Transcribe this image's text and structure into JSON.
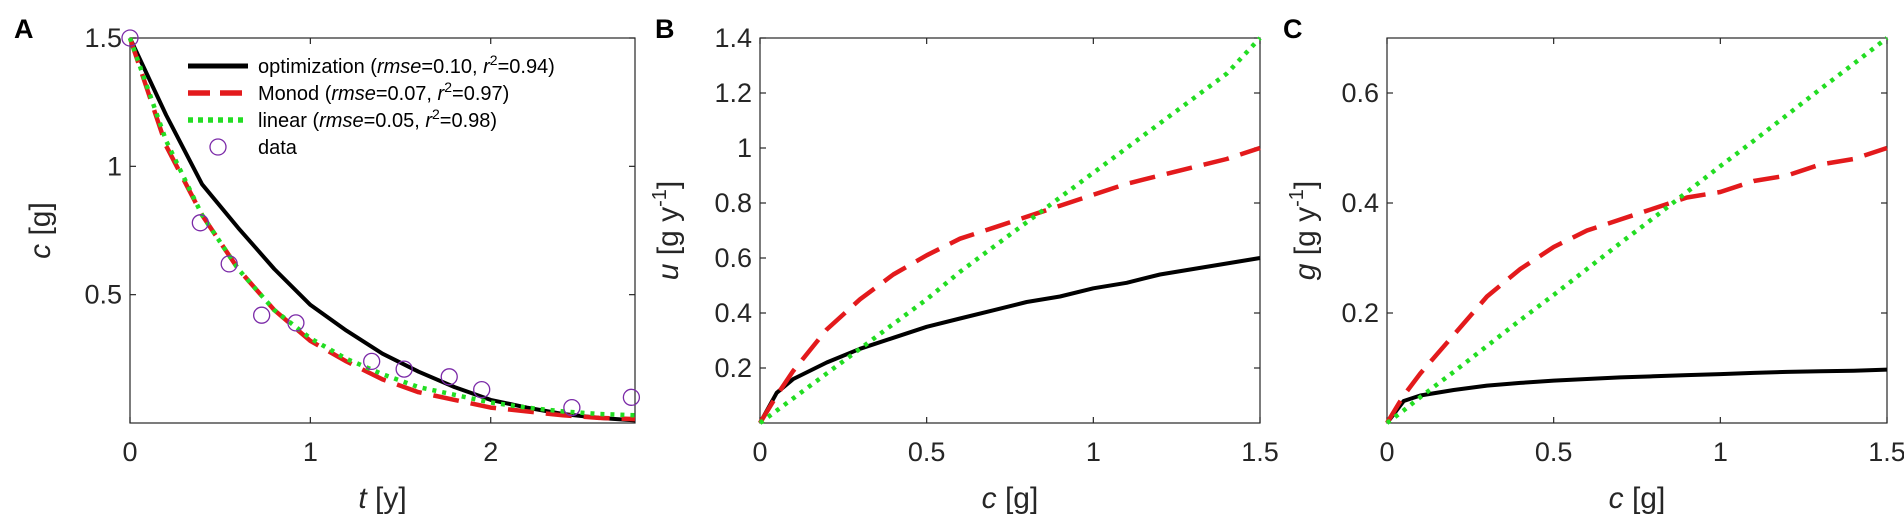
{
  "chart_data": [
    {
      "panel": "A",
      "type": "line",
      "xlabel_var": "t",
      "xlabel_unit": " [y]",
      "ylabel_var": "c",
      "ylabel_unit": " [g]",
      "xlim": [
        0,
        2.8
      ],
      "ylim": [
        0,
        1.5
      ],
      "xticks": [
        0,
        1,
        2
      ],
      "xtick_labels": [
        "0",
        "1",
        "2"
      ],
      "yticks": [
        0.5,
        1,
        1.5
      ],
      "ytick_labels": [
        "0.5",
        "1",
        "1.5"
      ],
      "grid": false,
      "legend_position": "top-right",
      "x": [
        0,
        0.2,
        0.4,
        0.6,
        0.8,
        1.0,
        1.2,
        1.4,
        1.6,
        1.8,
        2.0,
        2.2,
        2.4,
        2.6,
        2.8
      ],
      "series": [
        {
          "name": "optimization",
          "legend_name": "optimization (",
          "legend_rmse": "=0.10,  ",
          "legend_r2": "=0.94)",
          "color": "#000000",
          "style": "solid",
          "values": [
            1.5,
            1.2,
            0.93,
            0.76,
            0.6,
            0.46,
            0.36,
            0.27,
            0.2,
            0.14,
            0.09,
            0.06,
            0.035,
            0.02,
            0.01
          ]
        },
        {
          "name": "Monod",
          "legend_name": "Monod (",
          "legend_rmse": "=0.07,  ",
          "legend_r2": "=0.97)",
          "color": "#e31a1c",
          "style": "dashed",
          "values": [
            1.5,
            1.08,
            0.81,
            0.6,
            0.44,
            0.32,
            0.24,
            0.17,
            0.12,
            0.09,
            0.06,
            0.045,
            0.03,
            0.02,
            0.015
          ]
        },
        {
          "name": "linear",
          "legend_name": "linear (",
          "legend_rmse": "=0.05,  ",
          "legend_r2": "=0.98)",
          "color": "#22dd22",
          "style": "dotted",
          "values": [
            1.5,
            1.1,
            0.81,
            0.6,
            0.44,
            0.33,
            0.25,
            0.19,
            0.14,
            0.11,
            0.08,
            0.06,
            0.045,
            0.035,
            0.03
          ]
        }
      ],
      "scatter": {
        "name": "data",
        "color": "#7b2aa8",
        "x": [
          0,
          0.39,
          0.55,
          0.73,
          0.92,
          1.34,
          1.52,
          1.77,
          1.95,
          2.45,
          2.78
        ],
        "y": [
          1.5,
          0.78,
          0.62,
          0.42,
          0.39,
          0.24,
          0.21,
          0.18,
          0.13,
          0.06,
          0.1
        ]
      },
      "legend_rmse_label": "rmse",
      "legend_r2_label": "r"
    },
    {
      "panel": "B",
      "type": "line",
      "xlabel_var": "c",
      "xlabel_unit": " [g]",
      "ylabel_var": "u",
      "ylabel_unit": " [g y",
      "ylabel_exp": "-1",
      "ylabel_close": "]",
      "xlim": [
        0,
        1.5
      ],
      "ylim": [
        0,
        1.4
      ],
      "xticks": [
        0,
        0.5,
        1,
        1.5
      ],
      "xtick_labels": [
        "0",
        "0.5",
        "1",
        "1.5"
      ],
      "yticks": [
        0.2,
        0.4,
        0.6,
        0.8,
        1.0,
        1.2,
        1.4
      ],
      "ytick_labels": [
        "0.2",
        "0.4",
        "0.6",
        "0.8",
        "1",
        "1.2",
        "1.4"
      ],
      "grid": false,
      "x": [
        0,
        0.05,
        0.1,
        0.2,
        0.3,
        0.4,
        0.5,
        0.6,
        0.7,
        0.8,
        0.9,
        1.0,
        1.1,
        1.2,
        1.3,
        1.4,
        1.5
      ],
      "series": [
        {
          "name": "optimization",
          "color": "#000000",
          "style": "solid",
          "values": [
            0.0,
            0.11,
            0.16,
            0.22,
            0.27,
            0.31,
            0.35,
            0.38,
            0.41,
            0.44,
            0.46,
            0.49,
            0.51,
            0.54,
            0.56,
            0.58,
            0.6
          ]
        },
        {
          "name": "Monod",
          "color": "#e31a1c",
          "style": "dashed",
          "values": [
            0.0,
            0.1,
            0.19,
            0.34,
            0.45,
            0.54,
            0.61,
            0.67,
            0.71,
            0.75,
            0.79,
            0.83,
            0.87,
            0.9,
            0.93,
            0.96,
            1.0
          ]
        },
        {
          "name": "linear",
          "color": "#22dd22",
          "style": "dotted",
          "values": [
            0.0,
            0.045,
            0.09,
            0.18,
            0.27,
            0.36,
            0.45,
            0.55,
            0.64,
            0.73,
            0.82,
            0.91,
            1.0,
            1.09,
            1.18,
            1.27,
            1.4
          ]
        }
      ]
    },
    {
      "panel": "C",
      "type": "line",
      "xlabel_var": "c",
      "xlabel_unit": " [g]",
      "ylabel_var": "g",
      "ylabel_unit": " [g y",
      "ylabel_exp": "-1",
      "ylabel_close": "]",
      "xlim": [
        0,
        1.5
      ],
      "ylim": [
        0,
        0.7
      ],
      "xticks": [
        0,
        0.5,
        1,
        1.5
      ],
      "xtick_labels": [
        "0",
        "0.5",
        "1",
        "1.5"
      ],
      "yticks": [
        0.2,
        0.4,
        0.6
      ],
      "ytick_labels": [
        "0.2",
        "0.4",
        "0.6"
      ],
      "grid": false,
      "x": [
        0,
        0.05,
        0.1,
        0.2,
        0.3,
        0.4,
        0.5,
        0.6,
        0.7,
        0.8,
        0.9,
        1.0,
        1.1,
        1.2,
        1.3,
        1.4,
        1.5
      ],
      "series": [
        {
          "name": "optimization",
          "color": "#000000",
          "style": "solid",
          "values": [
            0.0,
            0.04,
            0.05,
            0.06,
            0.068,
            0.073,
            0.077,
            0.08,
            0.083,
            0.085,
            0.087,
            0.089,
            0.091,
            0.093,
            0.094,
            0.095,
            0.097
          ]
        },
        {
          "name": "Monod",
          "color": "#e31a1c",
          "style": "dashed",
          "values": [
            0.0,
            0.05,
            0.09,
            0.16,
            0.23,
            0.28,
            0.32,
            0.35,
            0.37,
            0.39,
            0.41,
            0.42,
            0.44,
            0.45,
            0.47,
            0.48,
            0.5
          ]
        },
        {
          "name": "linear",
          "color": "#22dd22",
          "style": "dotted",
          "values": [
            0.0,
            0.023,
            0.047,
            0.093,
            0.14,
            0.187,
            0.233,
            0.28,
            0.327,
            0.373,
            0.42,
            0.467,
            0.513,
            0.56,
            0.607,
            0.653,
            0.7
          ]
        }
      ]
    }
  ]
}
